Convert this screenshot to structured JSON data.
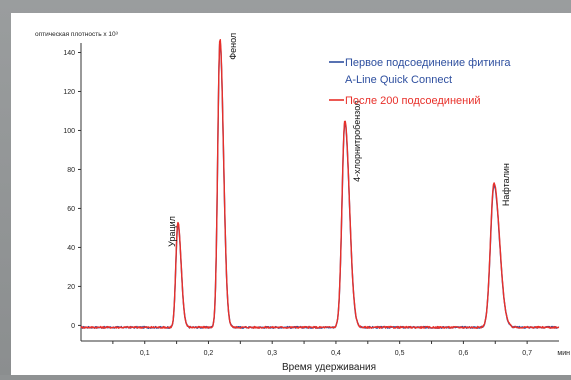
{
  "chart_data": {
    "type": "line",
    "ylabel": "оптическая плотность x 10³",
    "xlabel": "Время удерживания",
    "x_unit": "мин",
    "xlim": [
      0.0,
      0.75
    ],
    "ylim": [
      -8,
      150
    ],
    "x_ticks": [
      "0,1",
      "0,2",
      "0,3",
      "0,4",
      "0,5",
      "0,6",
      "0,7"
    ],
    "x_tick_values": [
      0.1,
      0.2,
      0.3,
      0.4,
      0.5,
      0.6,
      0.7
    ],
    "y_ticks": [
      "0",
      "20",
      "40",
      "60",
      "80",
      "100",
      "120",
      "140"
    ],
    "y_tick_values": [
      0,
      20,
      40,
      60,
      80,
      100,
      120,
      140
    ],
    "grid": false,
    "legend_position": "top-right",
    "legend_lines": [
      "Первое подсоединение фитинга",
      "A-Line Quick Connect",
      "После 200 подсоединений"
    ],
    "series": [
      {
        "name": "Первое подсоединение фитинга A-Line Quick Connect",
        "color": "#2e4f9f",
        "baseline": -1,
        "peaks": [
          {
            "x": 0.152,
            "y": 52,
            "width": 0.0032
          },
          {
            "x": 0.218,
            "y": 146,
            "width": 0.0035
          },
          {
            "x": 0.414,
            "y": 104,
            "width": 0.0045
          },
          {
            "x": 0.648,
            "y": 72,
            "width": 0.0055
          }
        ]
      },
      {
        "name": "После 200 подсоединений",
        "color": "#e8302a",
        "baseline": -1,
        "peaks": [
          {
            "x": 0.152,
            "y": 53,
            "width": 0.0032
          },
          {
            "x": 0.218,
            "y": 147,
            "width": 0.0035
          },
          {
            "x": 0.414,
            "y": 105,
            "width": 0.0045
          },
          {
            "x": 0.648,
            "y": 73,
            "width": 0.0055
          }
        ]
      }
    ],
    "annotations": [
      {
        "text": "Урацил",
        "x": 0.152,
        "y": 53
      },
      {
        "text": "Фенол",
        "x": 0.218,
        "y": 147
      },
      {
        "text": "4-хлорнитробензол",
        "x": 0.414,
        "y": 105
      },
      {
        "text": "Нафталин",
        "x": 0.648,
        "y": 73
      }
    ]
  }
}
